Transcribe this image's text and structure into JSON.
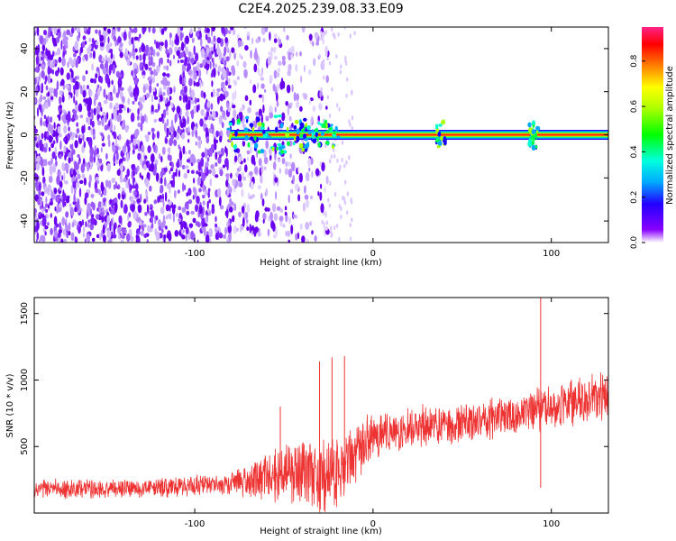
{
  "title": "C2E4.2025.239.08.33.E09",
  "chart_data": [
    {
      "type": "heatmap",
      "xlabel": "Height of straight line (km)",
      "ylabel": "Frequency (Hz)",
      "xlim": [
        -190,
        132
      ],
      "ylim": [
        -50,
        50
      ],
      "xticks": [
        -100,
        0,
        100
      ],
      "yticks": [
        -40,
        -20,
        0,
        20,
        40
      ],
      "colorbar": {
        "label": "Normalized spectral amplitude",
        "range": [
          0,
          0.95
        ],
        "ticks": [
          0.0,
          0.2,
          0.4,
          0.6,
          0.8
        ]
      },
      "noise_region_x": [
        -190,
        -30
      ],
      "carrier_line": {
        "frequency": 0,
        "x_start": -80,
        "x_end": 132,
        "peak_amplitude": 0.9
      },
      "bursts": [
        {
          "x": -70,
          "spread_hz": 8,
          "amplitude": 0.3
        },
        {
          "x": -48,
          "spread_hz": 9,
          "amplitude": 0.3
        },
        {
          "x": -30,
          "spread_hz": 6,
          "amplitude": 0.4
        },
        {
          "x": 38,
          "spread_hz": 6,
          "amplitude": 0.3
        },
        {
          "x": 90,
          "spread_hz": 6,
          "amplitude": 0.5
        }
      ]
    },
    {
      "type": "line",
      "xlabel": "Height of straight line (km)",
      "ylabel": "SNR (10 * v/v)",
      "xlim": [
        -190,
        132
      ],
      "ylim": [
        0,
        1620
      ],
      "xticks": [
        -100,
        0,
        100
      ],
      "yticks": [
        500,
        1000,
        1500
      ],
      "color": "#ee3333",
      "trend": {
        "x": [
          -190,
          -120,
          -80,
          -60,
          -40,
          -30,
          -20,
          -10,
          0,
          20,
          40,
          60,
          80,
          100,
          120,
          132
        ],
        "y_center": [
          180,
          190,
          220,
          280,
          300,
          260,
          300,
          450,
          580,
          640,
          660,
          700,
          740,
          800,
          850,
          900
        ],
        "y_spread": [
          80,
          80,
          100,
          200,
          300,
          350,
          300,
          250,
          200,
          180,
          170,
          170,
          170,
          180,
          200,
          220
        ]
      },
      "spikes": [
        {
          "x": -52,
          "y": 800
        },
        {
          "x": -30,
          "y": 1140
        },
        {
          "x": -23,
          "y": 1170
        },
        {
          "x": -16,
          "y": 1180
        },
        {
          "x": 94,
          "y": 1620
        },
        {
          "x": 94,
          "y": 190
        }
      ]
    }
  ]
}
